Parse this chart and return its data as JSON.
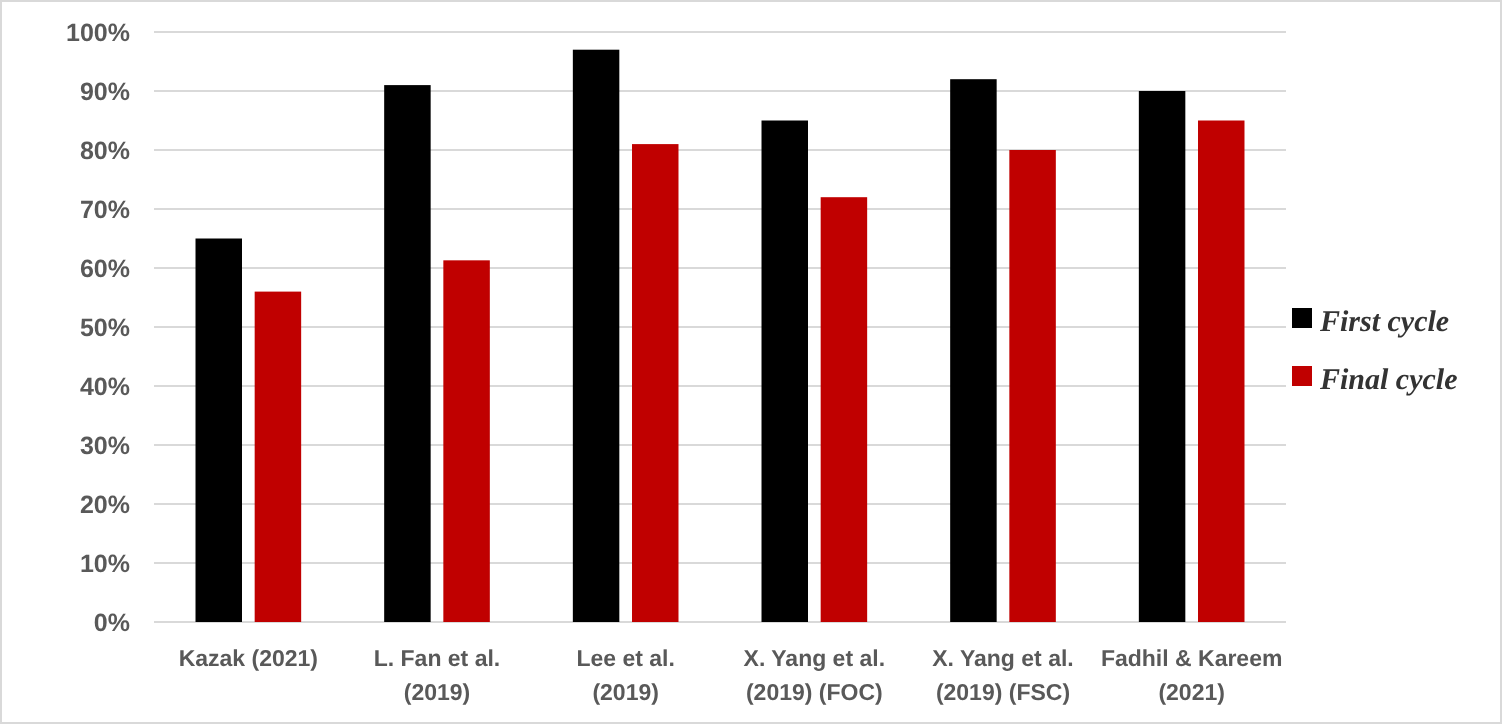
{
  "chart_data": {
    "type": "bar",
    "categories": [
      "Kazak (2021)",
      "L. Fan et al. (2019)",
      "Lee et al. (2019)",
      "X. Yang et al. (2019) (FOC)",
      "X. Yang et al. (2019) (FSC)",
      "Fadhil & Kareem (2021)"
    ],
    "series": [
      {
        "name": "First cycle",
        "color": "#000000",
        "values": [
          65,
          91,
          97,
          85,
          92,
          90
        ]
      },
      {
        "name": "Final cycle",
        "color": "#c00000",
        "values": [
          56,
          61.3,
          81,
          72,
          80,
          85
        ]
      }
    ],
    "ylim": [
      0,
      100
    ],
    "yticks": [
      {
        "value": 0,
        "label": "0%"
      },
      {
        "value": 10,
        "label": "10%"
      },
      {
        "value": 20,
        "label": "20%"
      },
      {
        "value": 30,
        "label": "30%"
      },
      {
        "value": 40,
        "label": "40%"
      },
      {
        "value": 50,
        "label": "50%"
      },
      {
        "value": 60,
        "label": "60%"
      },
      {
        "value": 70,
        "label": "70%"
      },
      {
        "value": 80,
        "label": "80%"
      },
      {
        "value": 90,
        "label": "90%"
      },
      {
        "value": 100,
        "label": "100%"
      }
    ],
    "grid": "y",
    "legend": "right"
  }
}
